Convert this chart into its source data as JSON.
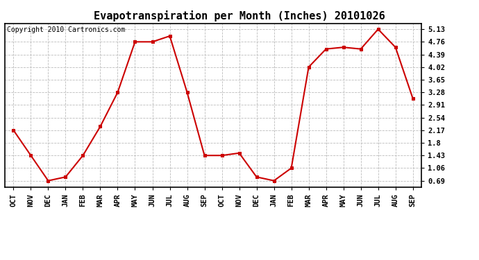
{
  "title": "Evapotranspiration per Month (Inches) 20101026",
  "copyright_text": "Copyright 2010 Cartronics.com",
  "months": [
    "OCT",
    "NOV",
    "DEC",
    "JAN",
    "FEB",
    "MAR",
    "APR",
    "MAY",
    "JUN",
    "JUL",
    "AUG",
    "SEP",
    "OCT",
    "NOV",
    "DEC",
    "JAN",
    "FEB",
    "MAR",
    "APR",
    "MAY",
    "JUN",
    "JUL",
    "AUG",
    "SEP"
  ],
  "values": [
    2.17,
    1.43,
    0.69,
    0.8,
    1.43,
    2.28,
    3.28,
    4.76,
    4.76,
    4.93,
    3.28,
    1.43,
    1.43,
    1.5,
    0.8,
    0.69,
    1.06,
    4.02,
    4.55,
    4.6,
    4.55,
    5.13,
    4.6,
    3.1
  ],
  "yticks": [
    0.69,
    1.06,
    1.43,
    1.8,
    2.17,
    2.54,
    2.91,
    3.28,
    3.65,
    4.02,
    4.39,
    4.76,
    5.13
  ],
  "line_color": "#cc0000",
  "marker": "s",
  "marker_size": 3,
  "background_color": "#ffffff",
  "grid_color": "#bbbbbb",
  "title_fontsize": 11,
  "copyright_fontsize": 7,
  "tick_fontsize": 7.5,
  "ylim": [
    0.5,
    5.3
  ]
}
